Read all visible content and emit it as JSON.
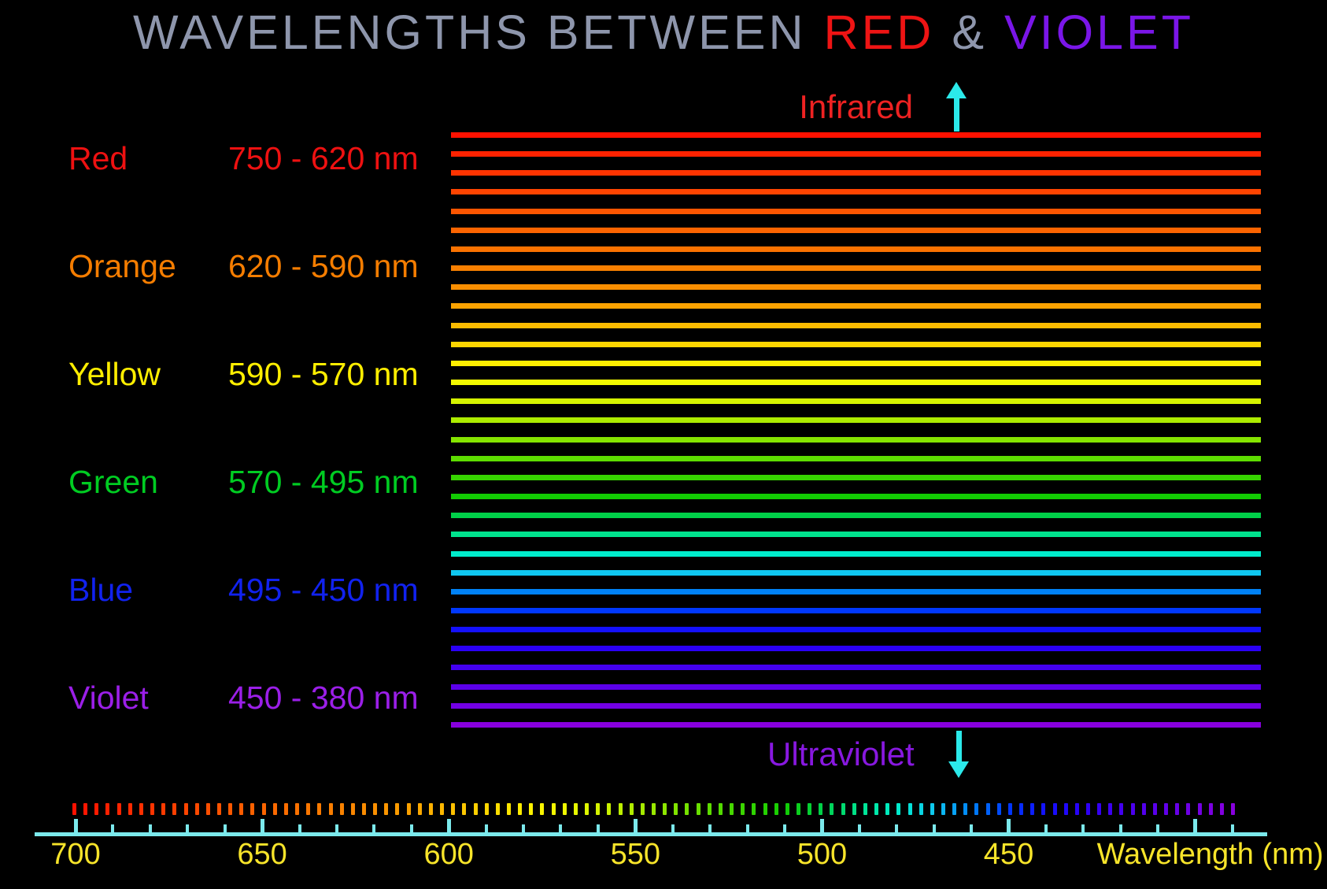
{
  "title": {
    "part1": "WAVELENGTHS BETWEEN",
    "red": "RED",
    "amp": "&",
    "violet": "VIOLET",
    "base_color": "#8e96ac",
    "red_color": "#ee1414",
    "violet_color": "#7a16e8"
  },
  "rows": [
    {
      "name": "Red",
      "range": "750 - 620 nm",
      "color": "#ee1111"
    },
    {
      "name": "Orange",
      "range": "620 - 590 nm",
      "color": "#f57d00"
    },
    {
      "name": "Yellow",
      "range": "590 - 570 nm",
      "color": "#ffee00"
    },
    {
      "name": "Green",
      "range": "570 - 495 nm",
      "color": "#00cc22"
    },
    {
      "name": "Blue",
      "range": "495 - 450 nm",
      "color": "#1122ee"
    },
    {
      "name": "Violet",
      "range": "450 - 380 nm",
      "color": "#9b1fe8"
    }
  ],
  "annotations": {
    "top": {
      "label": "Infrared",
      "color": "#ee2222"
    },
    "bottom": {
      "label": "Ultraviolet",
      "color": "#8818e0"
    },
    "arrow_color": "#2be9ea"
  },
  "stripes": {
    "colors": [
      "#ff1100",
      "#ff2200",
      "#fe3300",
      "#fd4400",
      "#fc5500",
      "#fb6400",
      "#fa7200",
      "#f98000",
      "#f98e00",
      "#faa200",
      "#fcbc00",
      "#fdd600",
      "#feee00",
      "#f2fa00",
      "#d5f300",
      "#adec00",
      "#85e400",
      "#5ddc00",
      "#36d400",
      "#12cc03",
      "#00d049",
      "#00e38e",
      "#00eccb",
      "#0fc7f0",
      "#0082f6",
      "#0038fc",
      "#1410fc",
      "#2b00f6",
      "#4300f0",
      "#5b00ea",
      "#7200e4",
      "#8800dd"
    ]
  },
  "axis": {
    "tick_labels": [
      "700",
      "650",
      "600",
      "550",
      "500",
      "450"
    ],
    "title": "Wavelength (nm)",
    "label_color": "#f7e42a",
    "line_color": "#7be9ec",
    "major_step_nm": 50,
    "minor_step_nm": 10,
    "range_start_nm": 700,
    "range_end_nm": 390
  }
}
